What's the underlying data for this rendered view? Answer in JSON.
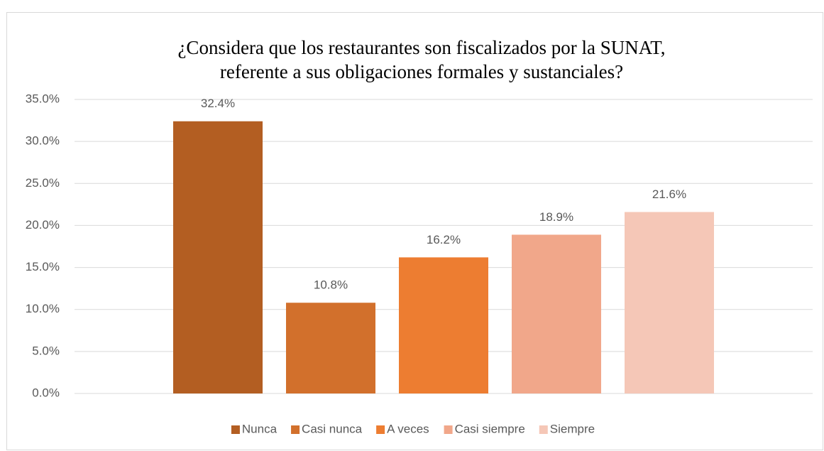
{
  "chart_data": {
    "type": "bar",
    "title": [
      "¿Considera que los restaurantes son fiscalizados por la SUNAT,",
      "referente a sus obligaciones formales y sustanciales?"
    ],
    "series": [
      {
        "name": "Nunca",
        "color": "#b35e22",
        "values": [
          32.4
        ],
        "value_labels": [
          "32.4%"
        ]
      },
      {
        "name": "Casi nunca",
        "color": "#d2702c",
        "values": [
          10.8
        ],
        "value_labels": [
          "10.8%"
        ]
      },
      {
        "name": "A veces",
        "color": "#ed7d31",
        "values": [
          16.2
        ],
        "value_labels": [
          "16.2%"
        ]
      },
      {
        "name": "Casi siempre",
        "color": "#f1a78a",
        "values": [
          18.9
        ],
        "value_labels": [
          "18.9%"
        ]
      },
      {
        "name": "Siempre",
        "color": "#f5c7b7",
        "values": [
          21.6
        ],
        "value_labels": [
          "21.6%"
        ]
      }
    ],
    "ylim": [
      0,
      35
    ],
    "yticks": [
      {
        "value": 0,
        "label": "0.0%"
      },
      {
        "value": 5,
        "label": "5.0%"
      },
      {
        "value": 10,
        "label": "10.0%"
      },
      {
        "value": 15,
        "label": "15.0%"
      },
      {
        "value": 20,
        "label": "20.0%"
      },
      {
        "value": 25,
        "label": "25.0%"
      },
      {
        "value": 30,
        "label": "30.0%"
      },
      {
        "value": 35,
        "label": "35.0%"
      }
    ],
    "grid": true,
    "legend": "bottom"
  }
}
